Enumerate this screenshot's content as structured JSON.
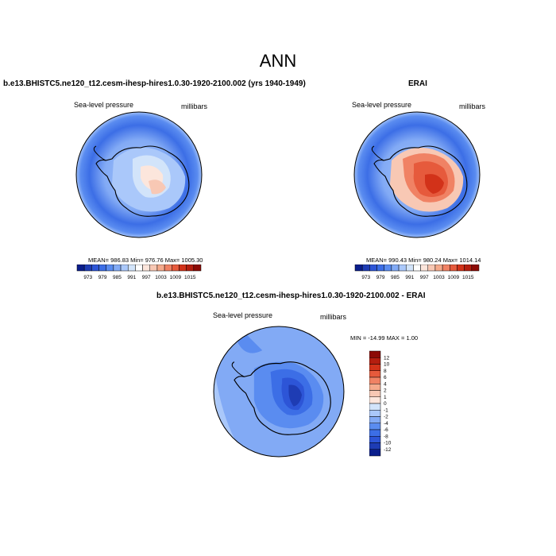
{
  "page": {
    "title": "ANN"
  },
  "chart_data": [
    {
      "type": "heatmap",
      "title": "b.e13.BHISTC5.ne120_t12.cesm-ihesp-hires1.0.30-1920-2100.002 (yrs 1940-1949)",
      "variable": "Sea-level pressure",
      "units": "millibars",
      "stats": {
        "mean": "986.83",
        "min": "976.76",
        "max": "1005.30"
      },
      "stats_text": "MEAN= 986.83   Min= 976.76   Max= 1005.30",
      "colorbar": {
        "orientation": "horizontal",
        "tick_labels": [
          "973",
          "979",
          "985",
          "991",
          "997",
          "1003",
          "1009",
          "1015"
        ],
        "colors": [
          "#0a1e8c",
          "#1e3cb4",
          "#2d55d7",
          "#3c6ee6",
          "#5a8cf0",
          "#82aaf5",
          "#aac8fa",
          "#d2e4fa",
          "#ffffff",
          "#fce6dc",
          "#f8c8b4",
          "#f5aa8c",
          "#f08264",
          "#e65a3c",
          "#d23219",
          "#b41e0f",
          "#8c0a05"
        ]
      }
    },
    {
      "type": "heatmap",
      "title": "ERAI",
      "variable": "Sea-level pressure",
      "units": "millibars",
      "stats": {
        "mean": "990.43",
        "min": "980.24",
        "max": "1014.14"
      },
      "stats_text": "MEAN= 990.43   Min= 980.24   Max= 1014.14",
      "colorbar": {
        "orientation": "horizontal",
        "tick_labels": [
          "973",
          "979",
          "985",
          "991",
          "997",
          "1003",
          "1009",
          "1015"
        ],
        "colors": [
          "#0a1e8c",
          "#1e3cb4",
          "#2d55d7",
          "#3c6ee6",
          "#5a8cf0",
          "#82aaf5",
          "#aac8fa",
          "#d2e4fa",
          "#ffffff",
          "#fce6dc",
          "#f8c8b4",
          "#f5aa8c",
          "#f08264",
          "#e65a3c",
          "#d23219",
          "#b41e0f",
          "#8c0a05"
        ]
      }
    },
    {
      "type": "heatmap",
      "title": "b.e13.BHISTC5.ne120_t12.cesm-ihesp-hires1.0.30-1920-2100.002 - ERAI",
      "variable": "Sea-level pressure",
      "units": "millibars",
      "stats": {
        "min": "-14.99",
        "max": "1.00"
      },
      "stats_text": "MIN = -14.99 MAX =   1.00",
      "colorbar": {
        "orientation": "vertical",
        "tick_labels": [
          "12",
          "10",
          "8",
          "6",
          "4",
          "2",
          "1",
          "0",
          "-1",
          "-2",
          "-4",
          "-6",
          "-8",
          "-10",
          "-12"
        ],
        "colors": [
          "#8c0a05",
          "#b41e0f",
          "#d23219",
          "#e65a3c",
          "#f08264",
          "#f5aa8c",
          "#f8c8b4",
          "#fce6dc",
          "#d2e4fa",
          "#aac8fa",
          "#82aaf5",
          "#5a8cf0",
          "#3c6ee6",
          "#2d55d7",
          "#1e3cb4",
          "#0a1e8c"
        ]
      }
    }
  ]
}
